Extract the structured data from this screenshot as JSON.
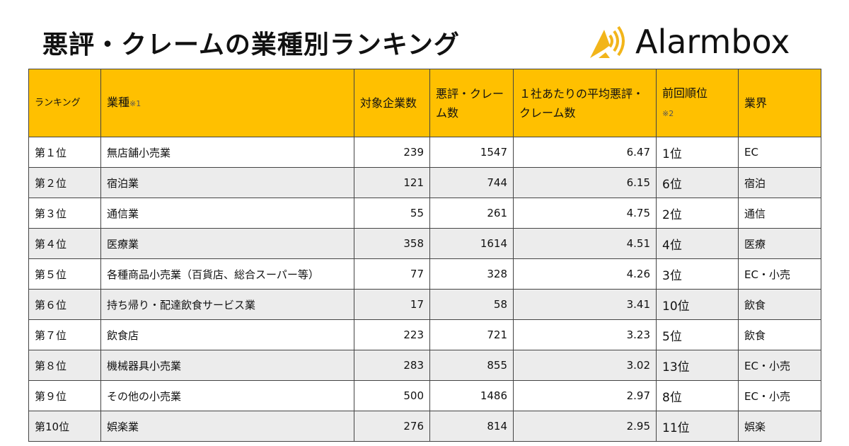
{
  "title": "悪評・クレームの業種別ランキング",
  "logo": "Alarmbox",
  "colors": {
    "header": "#FFC000",
    "logo": "#F2B51A"
  },
  "headers": {
    "rank": "ランキング",
    "industry": "業種",
    "industry_note": "※1",
    "companies": "対象企業数",
    "complaints": "悪評・クレーム数",
    "average": "１社あたりの平均悪評・クレーム数",
    "prev": "前回順位",
    "prev_note": "※2",
    "sector": "業界"
  },
  "rows": [
    {
      "rank": "第１位",
      "industry": "無店舗小売業",
      "companies": "239",
      "complaints": "1547",
      "average": "6.47",
      "prev": "1位",
      "sector": "EC"
    },
    {
      "rank": "第２位",
      "industry": "宿泊業",
      "companies": "121",
      "complaints": "744",
      "average": "6.15",
      "prev": "6位",
      "sector": "宿泊"
    },
    {
      "rank": "第３位",
      "industry": "通信業",
      "companies": "55",
      "complaints": "261",
      "average": "4.75",
      "prev": "2位",
      "sector": "通信"
    },
    {
      "rank": "第４位",
      "industry": "医療業",
      "companies": "358",
      "complaints": "1614",
      "average": "4.51",
      "prev": "4位",
      "sector": "医療"
    },
    {
      "rank": "第５位",
      "industry": "各種商品小売業（百貨店、総合スーパー等）",
      "companies": "77",
      "complaints": "328",
      "average": "4.26",
      "prev": "3位",
      "sector": "EC・小売"
    },
    {
      "rank": "第６位",
      "industry": "持ち帰り・配達飲食サービス業",
      "companies": "17",
      "complaints": "58",
      "average": "3.41",
      "prev": "10位",
      "sector": "飲食"
    },
    {
      "rank": "第７位",
      "industry": "飲食店",
      "companies": "223",
      "complaints": "721",
      "average": "3.23",
      "prev": "5位",
      "sector": "飲食"
    },
    {
      "rank": "第８位",
      "industry": "機械器具小売業",
      "companies": "283",
      "complaints": "855",
      "average": "3.02",
      "prev": "13位",
      "sector": "EC・小売"
    },
    {
      "rank": "第９位",
      "industry": "その他の小売業",
      "companies": "500",
      "complaints": "1486",
      "average": "2.97",
      "prev": "8位",
      "sector": "EC・小売"
    },
    {
      "rank": "第10位",
      "industry": "娯楽業",
      "companies": "276",
      "complaints": "814",
      "average": "2.95",
      "prev": "11位",
      "sector": "娯楽"
    }
  ]
}
